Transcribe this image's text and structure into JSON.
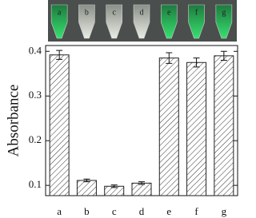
{
  "chart_data": {
    "type": "bar",
    "y_label": "Absorbance",
    "categories": [
      "a",
      "b",
      "c",
      "d",
      "e",
      "f",
      "g"
    ],
    "values": [
      0.392,
      0.111,
      0.098,
      0.105,
      0.385,
      0.375,
      0.39
    ],
    "errors": [
      0.01,
      0.003,
      0.003,
      0.003,
      0.012,
      0.01,
      0.01
    ],
    "ylim": [
      0.077,
      0.413
    ],
    "yticks": [
      0.1,
      0.2,
      0.3,
      0.4
    ]
  }
}
